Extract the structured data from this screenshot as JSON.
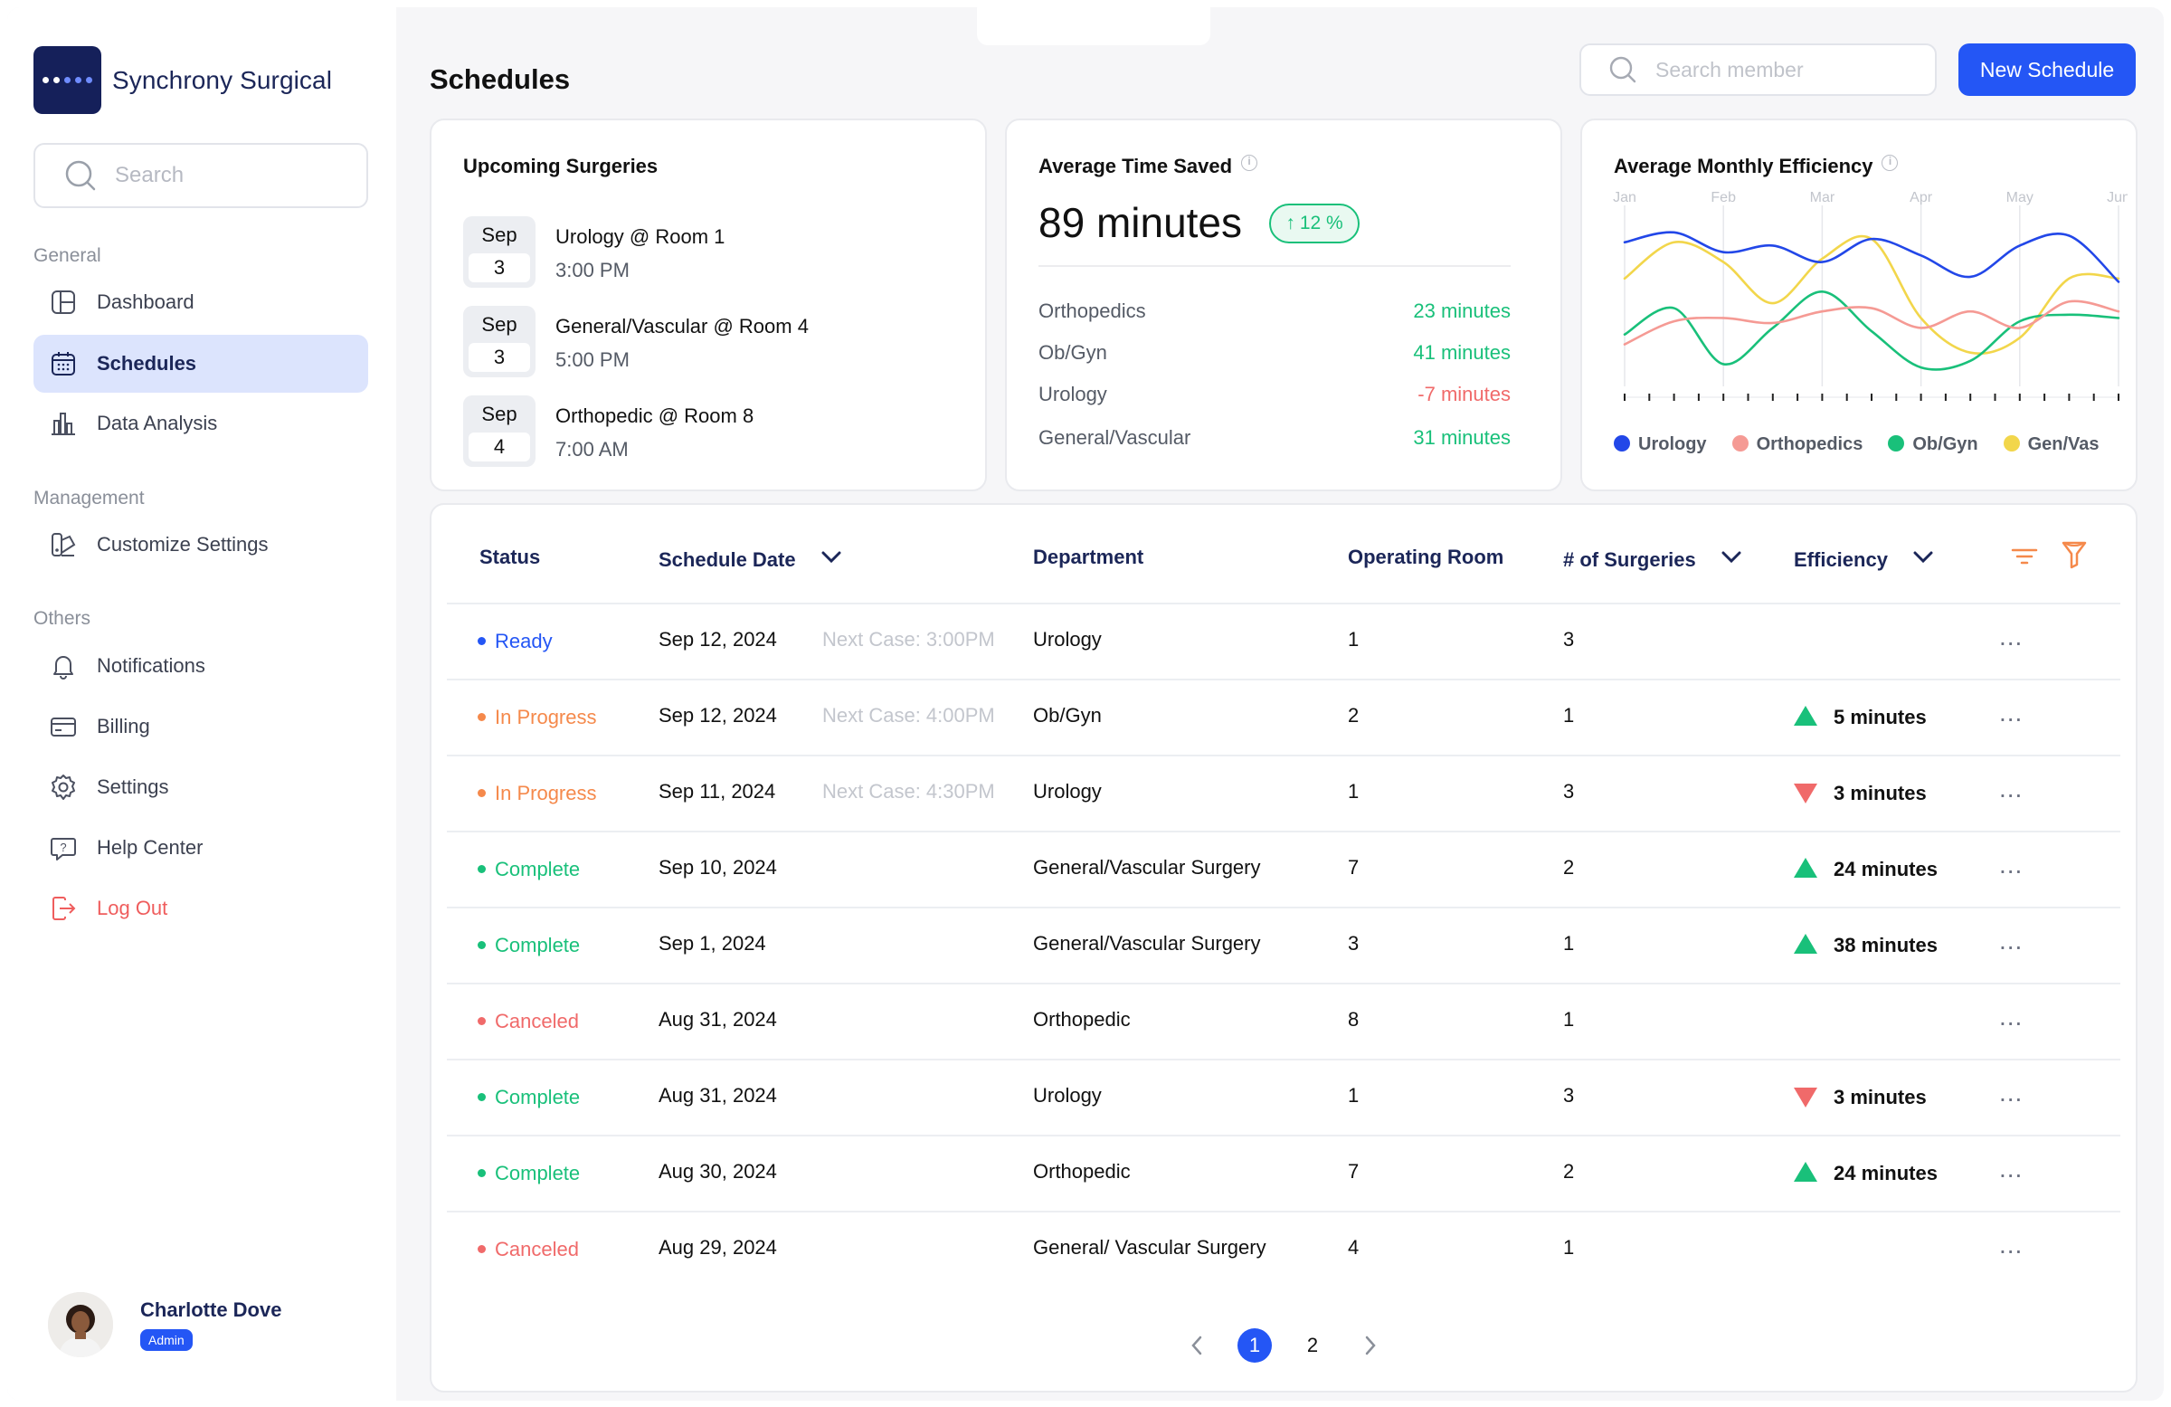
{
  "brand": {
    "name": "Synchrony Surgical"
  },
  "sidebar": {
    "search_placeholder": "Search",
    "sections": {
      "general": "General",
      "management": "Management",
      "others": "Others"
    },
    "items": [
      {
        "label": "Dashboard",
        "icon": "dashboard-icon"
      },
      {
        "label": "Schedules",
        "icon": "calendar-icon",
        "active": true
      },
      {
        "label": "Data Analysis",
        "icon": "bar-chart-icon"
      },
      {
        "label": "Customize Settings",
        "icon": "customize-icon"
      },
      {
        "label": "Notifications",
        "icon": "bell-icon"
      },
      {
        "label": "Billing",
        "icon": "card-icon"
      },
      {
        "label": "Settings",
        "icon": "gear-icon"
      },
      {
        "label": "Help Center",
        "icon": "help-icon"
      },
      {
        "label": "Log Out",
        "icon": "logout-icon"
      }
    ],
    "user": {
      "name": "Charlotte Dove",
      "role": "Admin"
    }
  },
  "header": {
    "title": "Schedules",
    "member_search_placeholder": "Search member",
    "new_button": "New Schedule"
  },
  "upcoming": {
    "title": "Upcoming Surgeries",
    "items": [
      {
        "month": "Sep",
        "day": "3",
        "title": "Urology @ Room 1",
        "time": "3:00 PM"
      },
      {
        "month": "Sep",
        "day": "3",
        "title": "General/Vascular @ Room 4",
        "time": "5:00 PM"
      },
      {
        "month": "Sep",
        "day": "4",
        "title": "Orthopedic @ Room 8",
        "time": "7:00 AM"
      }
    ]
  },
  "time_saved": {
    "title": "Average Time Saved",
    "value": "89 minutes",
    "change": "12 %",
    "rows": [
      {
        "dept": "Orthopedics",
        "value": "23 minutes",
        "positive": true
      },
      {
        "dept": "Ob/Gyn",
        "value": "41 minutes",
        "positive": true
      },
      {
        "dept": "Urology",
        "value": "-7 minutes",
        "positive": false
      },
      {
        "dept": "General/Vascular",
        "value": "31 minutes",
        "positive": true
      }
    ]
  },
  "efficiency": {
    "title": "Average Monthly Efficiency",
    "legend": [
      "Urology",
      "Orthopedics",
      "Ob/Gyn",
      "Gen/Vas"
    ],
    "colors": {
      "Urology": "#2247e8",
      "Orthopedics": "#f59a94",
      "Ob/Gyn": "#19c07a",
      "Gen/Vas": "#f2d64b"
    }
  },
  "chart_data": {
    "type": "line",
    "title": "Average Monthly Efficiency",
    "x": [
      "Jan",
      "",
      "Feb",
      "",
      "Mar",
      "",
      "Apr",
      "",
      "May",
      "",
      "Jun"
    ],
    "grid": true,
    "legend_position": "bottom",
    "ylim": [
      0,
      100
    ],
    "series": [
      {
        "name": "Urology",
        "values": [
          82,
          88,
          76,
          80,
          70,
          84,
          74,
          61,
          80,
          86,
          58
        ]
      },
      {
        "name": "Orthopedics",
        "values": [
          20,
          34,
          36,
          33,
          40,
          42,
          30,
          40,
          30,
          46,
          40
        ]
      },
      {
        "name": "Ob/Gyn",
        "values": [
          26,
          42,
          8,
          30,
          52,
          28,
          6,
          10,
          34,
          38,
          36
        ]
      },
      {
        "name": "Gen/Vas",
        "values": [
          60,
          82,
          70,
          45,
          72,
          84,
          36,
          15,
          24,
          60,
          60
        ]
      }
    ]
  },
  "table": {
    "headers": {
      "status": "Status",
      "date": "Schedule Date",
      "department": "Department",
      "room": "Operating Room",
      "surgeries": "# of Surgeries",
      "efficiency": "Efficiency"
    },
    "rows": [
      {
        "status": "Ready",
        "kind": "ready",
        "date": "Sep 12, 2024",
        "next": "Next Case: 3:00PM",
        "dept": "Urology",
        "room": "1",
        "surgeries": "3",
        "eff": "",
        "dir": ""
      },
      {
        "status": "In Progress",
        "kind": "prog",
        "date": "Sep 12, 2024",
        "next": "Next Case: 4:00PM",
        "dept": "Ob/Gyn",
        "room": "2",
        "surgeries": "1",
        "eff": "5 minutes",
        "dir": "up"
      },
      {
        "status": "In Progress",
        "kind": "prog",
        "date": "Sep 11, 2024",
        "next": "Next Case: 4:30PM",
        "dept": "Urology",
        "room": "1",
        "surgeries": "3",
        "eff": "3 minutes",
        "dir": "down"
      },
      {
        "status": "Complete",
        "kind": "comp",
        "date": "Sep 10, 2024",
        "next": "",
        "dept": "General/Vascular Surgery",
        "room": "7",
        "surgeries": "2",
        "eff": "24 minutes",
        "dir": "up"
      },
      {
        "status": "Complete",
        "kind": "comp",
        "date": "Sep 1, 2024",
        "next": "",
        "dept": "General/Vascular Surgery",
        "room": "3",
        "surgeries": "1",
        "eff": "38 minutes",
        "dir": "up"
      },
      {
        "status": "Canceled",
        "kind": "canc",
        "date": "Aug 31, 2024",
        "next": "",
        "dept": "Orthopedic",
        "room": "8",
        "surgeries": "1",
        "eff": "",
        "dir": ""
      },
      {
        "status": "Complete",
        "kind": "comp",
        "date": "Aug 31, 2024",
        "next": "",
        "dept": "Urology",
        "room": "1",
        "surgeries": "3",
        "eff": "3 minutes",
        "dir": "down"
      },
      {
        "status": "Complete",
        "kind": "comp",
        "date": "Aug 30, 2024",
        "next": "",
        "dept": "Orthopedic",
        "room": "7",
        "surgeries": "2",
        "eff": "24 minutes",
        "dir": "up"
      },
      {
        "status": "Canceled",
        "kind": "canc",
        "date": "Aug 29, 2024",
        "next": "",
        "dept": "General/ Vascular Surgery",
        "room": "4",
        "surgeries": "1",
        "eff": "",
        "dir": ""
      }
    ],
    "more_icon": "...",
    "pagination": {
      "pages": [
        "1",
        "2"
      ],
      "current": "1"
    }
  }
}
